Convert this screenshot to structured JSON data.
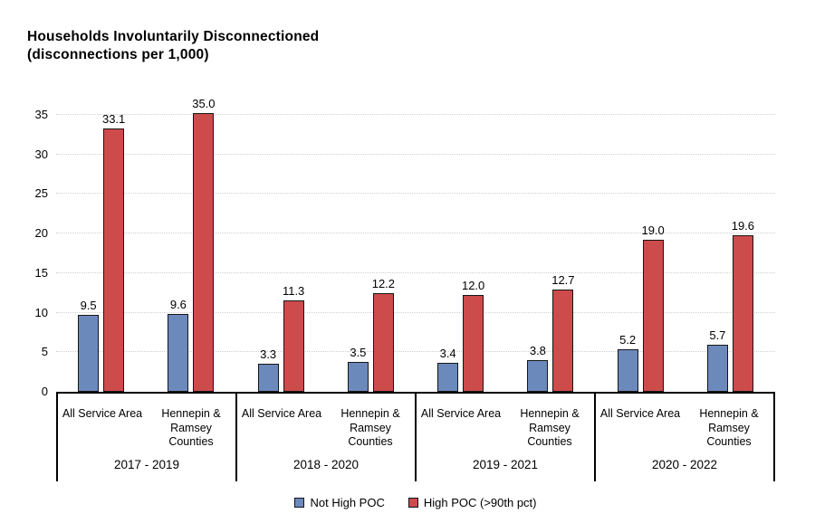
{
  "chart_data": {
    "type": "bar",
    "title": "Households Involuntarily Disconnectioned",
    "subtitle": "(disconnections per 1,000)",
    "xlabel": "",
    "ylabel": "",
    "ylim": [
      0,
      35
    ],
    "ytick_step": 5,
    "yticks": [
      0,
      5,
      10,
      15,
      20,
      25,
      30,
      35
    ],
    "grid": "horizontal-dotted",
    "legend_position": "bottom-center",
    "value_labels": "one-decimal-above-bars",
    "series": [
      {
        "name": "Not High POC",
        "color": "#6C89BC"
      },
      {
        "name": "High POC (>90th pct)",
        "color": "#CE4B4B"
      }
    ],
    "groups": [
      {
        "period": "2017 - 2019",
        "categories": [
          {
            "label": "All Service Area",
            "label_lines": [
              "All Service Area"
            ],
            "values": [
              9.5,
              33.1
            ]
          },
          {
            "label": "Hennepin & Ramsey Counties",
            "label_lines": [
              "Hennepin &",
              "Ramsey",
              "Counties"
            ],
            "values": [
              9.6,
              35.0
            ]
          }
        ]
      },
      {
        "period": "2018 - 2020",
        "categories": [
          {
            "label": "All Service Area",
            "label_lines": [
              "All Service Area"
            ],
            "values": [
              3.3,
              11.3
            ]
          },
          {
            "label": "Hennepin & Ramsey Counties",
            "label_lines": [
              "Hennepin &",
              "Ramsey",
              "Counties"
            ],
            "values": [
              3.5,
              12.2
            ]
          }
        ]
      },
      {
        "period": "2019 - 2021",
        "categories": [
          {
            "label": "All Service Area",
            "label_lines": [
              "All Service Area"
            ],
            "values": [
              3.4,
              12.0
            ]
          },
          {
            "label": "Hennepin & Ramsey Counties",
            "label_lines": [
              "Hennepin &",
              "Ramsey",
              "Counties"
            ],
            "values": [
              3.8,
              12.7
            ]
          }
        ]
      },
      {
        "period": "2020 - 2022",
        "categories": [
          {
            "label": "All Service Area",
            "label_lines": [
              "All Service Area"
            ],
            "values": [
              5.2,
              19.0
            ]
          },
          {
            "label": "Hennepin & Ramsey Counties",
            "label_lines": [
              "Hennepin &",
              "Ramsey",
              "Counties"
            ],
            "values": [
              5.7,
              19.6
            ]
          }
        ]
      }
    ]
  }
}
